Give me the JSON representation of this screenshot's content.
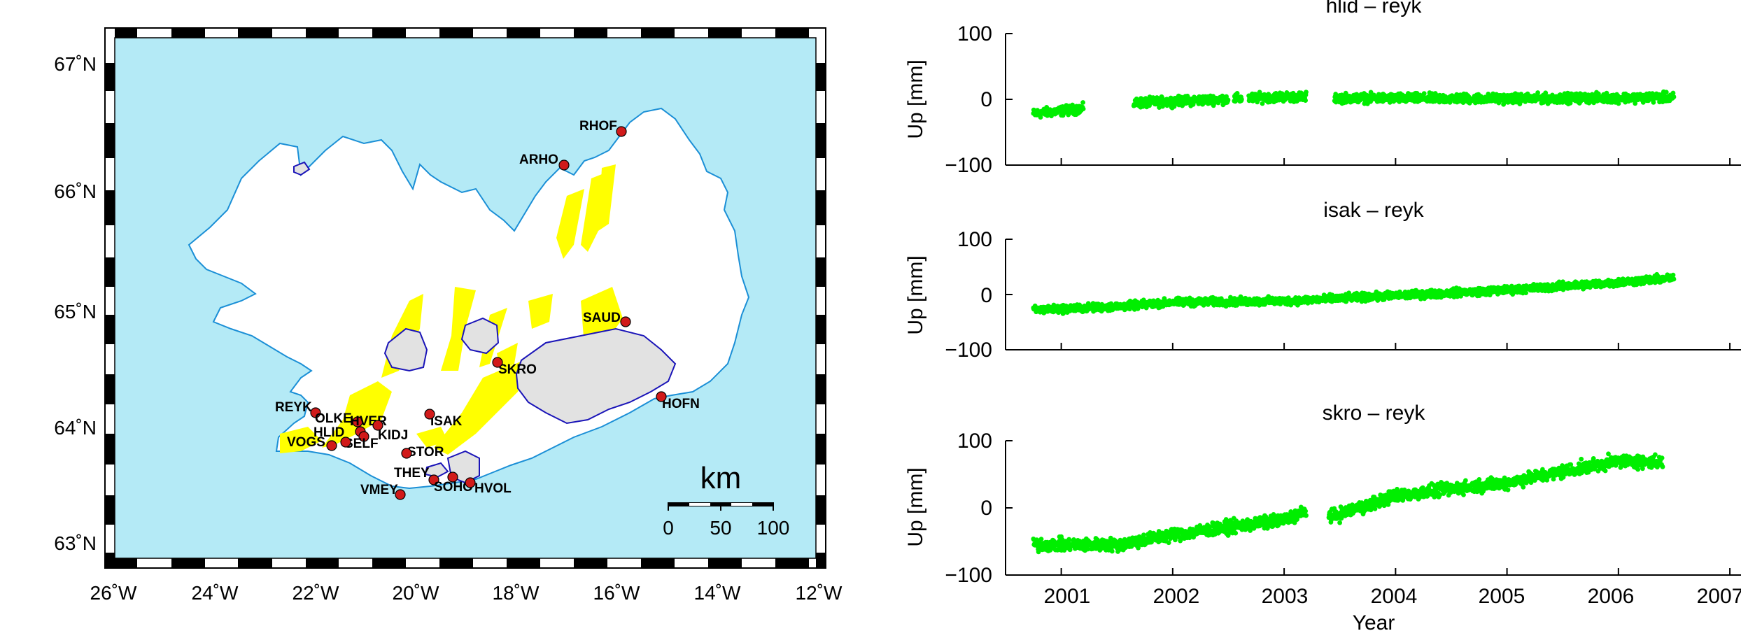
{
  "map": {
    "lat_labels": [
      "67˚N",
      "66˚N",
      "65˚N",
      "64˚N",
      "63˚N"
    ],
    "lon_labels": [
      "26˚W",
      "24˚W",
      "22˚W",
      "20˚W",
      "18˚W",
      "16˚W",
      "14˚W",
      "12˚W"
    ],
    "stations": [
      "RHOF",
      "ARHO",
      "SAUD",
      "SKRO",
      "HOFN",
      "REYK",
      "OLKE",
      "HVER",
      "HLID",
      "KIDJ",
      "ISAK",
      "VOGS",
      "SELF",
      "STOR",
      "THEY",
      "SOHO",
      "HVOL",
      "VMEY"
    ],
    "scale": {
      "unit": "km",
      "ticks": [
        "0",
        "50",
        "100"
      ]
    },
    "colors": {
      "sea": "#b4eaf6",
      "land": "#ffffff",
      "coast": "#1b8fd6",
      "glacier": "#e2e2e2",
      "glacier_edge": "#1a14b8",
      "fissure": "#ffff00",
      "station": "#d11a1a"
    }
  },
  "chart_data": [
    {
      "type": "scatter",
      "title": "hlid – reyk",
      "ylabel": "Up [mm]",
      "xlim": [
        2000.5,
        2007.1
      ],
      "ylim": [
        -100,
        100
      ],
      "yticks": [
        "100",
        "0",
        "−100"
      ],
      "color": "#00ee00",
      "trend": [
        [
          2000.75,
          -22
        ],
        [
          2001.2,
          -14
        ],
        [
          2001.6,
          -6
        ],
        [
          2003.0,
          4
        ],
        [
          2003.5,
          2
        ],
        [
          2005.0,
          1
        ],
        [
          2006.5,
          3
        ]
      ],
      "spread": 6,
      "gaps": [
        [
          2001.2,
          2001.65
        ],
        [
          2003.2,
          2003.45
        ]
      ]
    },
    {
      "type": "scatter",
      "title": "isak – reyk",
      "ylabel": "Up [mm]",
      "xlim": [
        2000.5,
        2007.1
      ],
      "ylim": [
        -100,
        100
      ],
      "yticks": [
        "100",
        "0",
        "−100"
      ],
      "color": "#00ee00",
      "trend": [
        [
          2000.75,
          -28
        ],
        [
          2001.5,
          -22
        ],
        [
          2002.0,
          -14
        ],
        [
          2003.0,
          -12
        ],
        [
          2004.0,
          -2
        ],
        [
          2005.0,
          8
        ],
        [
          2006.0,
          22
        ],
        [
          2006.5,
          30
        ]
      ],
      "spread": 6,
      "gaps": []
    },
    {
      "type": "scatter",
      "title": "skro – reyk",
      "ylabel": "Up [mm]",
      "xlabel": "Year",
      "xlim": [
        2000.5,
        2007.1
      ],
      "xticks": [
        "2001",
        "2002",
        "2003",
        "2004",
        "2005",
        "2006",
        "2007"
      ],
      "ylim": [
        -100,
        100
      ],
      "yticks": [
        "100",
        "0",
        "−100"
      ],
      "color": "#00ee00",
      "trend": [
        [
          2000.75,
          -55
        ],
        [
          2001.5,
          -55
        ],
        [
          2002.0,
          -40
        ],
        [
          2003.0,
          -18
        ],
        [
          2003.2,
          -5
        ],
        [
          2003.45,
          -12
        ],
        [
          2004.0,
          18
        ],
        [
          2005.0,
          38
        ],
        [
          2006.0,
          70
        ],
        [
          2006.4,
          68
        ]
      ],
      "spread": 8,
      "gaps": [
        [
          2003.2,
          2003.4
        ]
      ]
    }
  ]
}
